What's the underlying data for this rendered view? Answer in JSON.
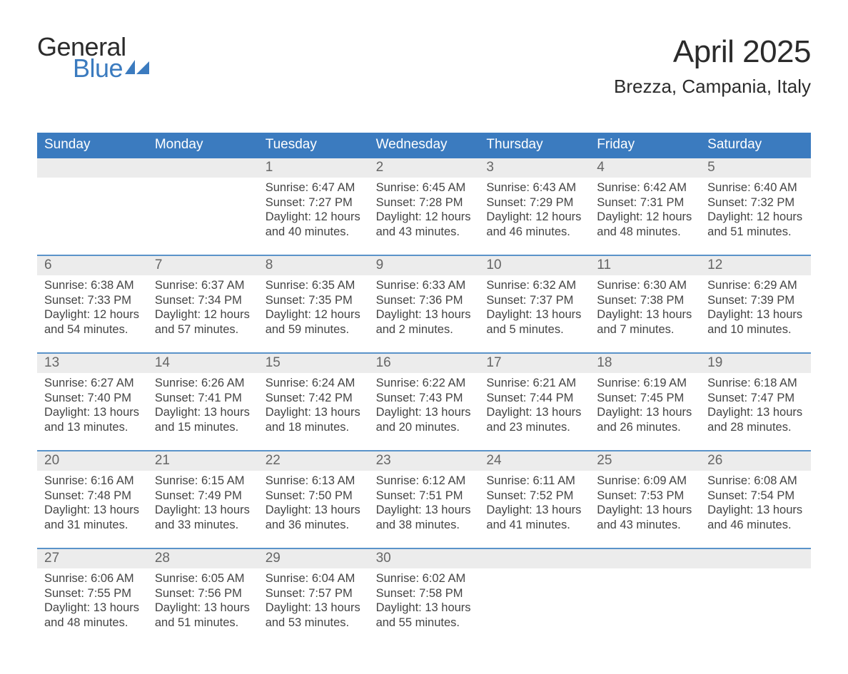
{
  "brand": {
    "word1": "General",
    "word2": "Blue"
  },
  "title": {
    "month": "April 2025",
    "location": "Brezza, Campania, Italy"
  },
  "colors": {
    "header_bg": "#3b7bbf",
    "daynum_bg": "#ececec",
    "divider": "#5a93c9",
    "logo_blue": "#3b7bbf",
    "text_dark": "#2b2b2b",
    "text_body": "#444444"
  },
  "day_headers": [
    "Sunday",
    "Monday",
    "Tuesday",
    "Wednesday",
    "Thursday",
    "Friday",
    "Saturday"
  ],
  "weeks": [
    [
      null,
      null,
      {
        "n": "1",
        "sr": "6:47 AM",
        "ss": "7:27 PM",
        "dl": "12 hours and 40 minutes."
      },
      {
        "n": "2",
        "sr": "6:45 AM",
        "ss": "7:28 PM",
        "dl": "12 hours and 43 minutes."
      },
      {
        "n": "3",
        "sr": "6:43 AM",
        "ss": "7:29 PM",
        "dl": "12 hours and 46 minutes."
      },
      {
        "n": "4",
        "sr": "6:42 AM",
        "ss": "7:31 PM",
        "dl": "12 hours and 48 minutes."
      },
      {
        "n": "5",
        "sr": "6:40 AM",
        "ss": "7:32 PM",
        "dl": "12 hours and 51 minutes."
      }
    ],
    [
      {
        "n": "6",
        "sr": "6:38 AM",
        "ss": "7:33 PM",
        "dl": "12 hours and 54 minutes."
      },
      {
        "n": "7",
        "sr": "6:37 AM",
        "ss": "7:34 PM",
        "dl": "12 hours and 57 minutes."
      },
      {
        "n": "8",
        "sr": "6:35 AM",
        "ss": "7:35 PM",
        "dl": "12 hours and 59 minutes."
      },
      {
        "n": "9",
        "sr": "6:33 AM",
        "ss": "7:36 PM",
        "dl": "13 hours and 2 minutes."
      },
      {
        "n": "10",
        "sr": "6:32 AM",
        "ss": "7:37 PM",
        "dl": "13 hours and 5 minutes."
      },
      {
        "n": "11",
        "sr": "6:30 AM",
        "ss": "7:38 PM",
        "dl": "13 hours and 7 minutes."
      },
      {
        "n": "12",
        "sr": "6:29 AM",
        "ss": "7:39 PM",
        "dl": "13 hours and 10 minutes."
      }
    ],
    [
      {
        "n": "13",
        "sr": "6:27 AM",
        "ss": "7:40 PM",
        "dl": "13 hours and 13 minutes."
      },
      {
        "n": "14",
        "sr": "6:26 AM",
        "ss": "7:41 PM",
        "dl": "13 hours and 15 minutes."
      },
      {
        "n": "15",
        "sr": "6:24 AM",
        "ss": "7:42 PM",
        "dl": "13 hours and 18 minutes."
      },
      {
        "n": "16",
        "sr": "6:22 AM",
        "ss": "7:43 PM",
        "dl": "13 hours and 20 minutes."
      },
      {
        "n": "17",
        "sr": "6:21 AM",
        "ss": "7:44 PM",
        "dl": "13 hours and 23 minutes."
      },
      {
        "n": "18",
        "sr": "6:19 AM",
        "ss": "7:45 PM",
        "dl": "13 hours and 26 minutes."
      },
      {
        "n": "19",
        "sr": "6:18 AM",
        "ss": "7:47 PM",
        "dl": "13 hours and 28 minutes."
      }
    ],
    [
      {
        "n": "20",
        "sr": "6:16 AM",
        "ss": "7:48 PM",
        "dl": "13 hours and 31 minutes."
      },
      {
        "n": "21",
        "sr": "6:15 AM",
        "ss": "7:49 PM",
        "dl": "13 hours and 33 minutes."
      },
      {
        "n": "22",
        "sr": "6:13 AM",
        "ss": "7:50 PM",
        "dl": "13 hours and 36 minutes."
      },
      {
        "n": "23",
        "sr": "6:12 AM",
        "ss": "7:51 PM",
        "dl": "13 hours and 38 minutes."
      },
      {
        "n": "24",
        "sr": "6:11 AM",
        "ss": "7:52 PM",
        "dl": "13 hours and 41 minutes."
      },
      {
        "n": "25",
        "sr": "6:09 AM",
        "ss": "7:53 PM",
        "dl": "13 hours and 43 minutes."
      },
      {
        "n": "26",
        "sr": "6:08 AM",
        "ss": "7:54 PM",
        "dl": "13 hours and 46 minutes."
      }
    ],
    [
      {
        "n": "27",
        "sr": "6:06 AM",
        "ss": "7:55 PM",
        "dl": "13 hours and 48 minutes."
      },
      {
        "n": "28",
        "sr": "6:05 AM",
        "ss": "7:56 PM",
        "dl": "13 hours and 51 minutes."
      },
      {
        "n": "29",
        "sr": "6:04 AM",
        "ss": "7:57 PM",
        "dl": "13 hours and 53 minutes."
      },
      {
        "n": "30",
        "sr": "6:02 AM",
        "ss": "7:58 PM",
        "dl": "13 hours and 55 minutes."
      },
      null,
      null,
      null
    ]
  ],
  "labels": {
    "sunrise": "Sunrise: ",
    "sunset": "Sunset: ",
    "daylight": "Daylight: "
  }
}
